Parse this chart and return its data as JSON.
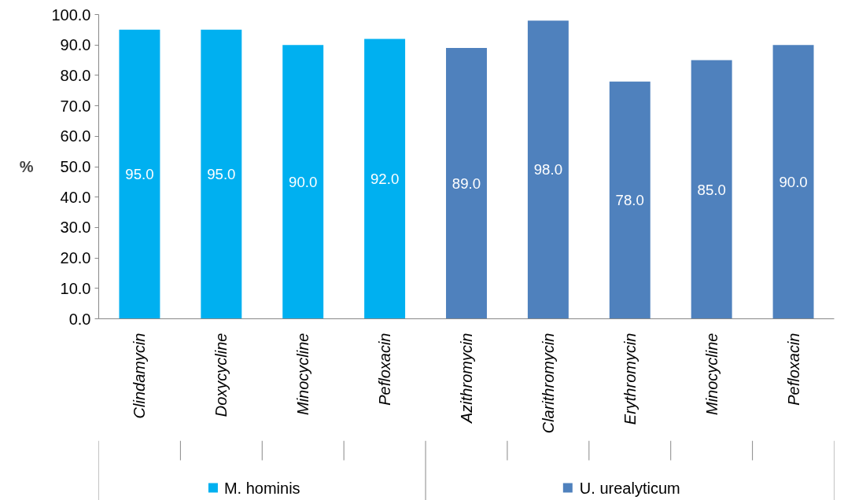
{
  "chart_data": {
    "type": "bar",
    "ylabel": "%",
    "categories": [
      "Clindamycin",
      "Doxycycline",
      "Minocycline",
      "Pefloxacin",
      "Azithromycin",
      "Clarithromycin",
      "Erythromycin",
      "Minocycline",
      "Pefloxacin"
    ],
    "series": [
      {
        "name": "M. hominis",
        "color": "#00b0f0",
        "values": [
          95.0,
          95.0,
          90.0,
          92.0,
          null,
          null,
          null,
          null,
          null
        ],
        "value_labels": [
          "95.0",
          "95.0",
          "90.0",
          "92.0",
          null,
          null,
          null,
          null,
          null
        ]
      },
      {
        "name": "U. urealyticum",
        "color": "#4f81bd",
        "values": [
          null,
          null,
          null,
          null,
          89.0,
          98.0,
          78.0,
          85.0,
          90.0
        ],
        "value_labels": [
          null,
          null,
          null,
          null,
          "89.0",
          "98.0",
          "78.0",
          "85.0",
          "90.0"
        ]
      }
    ],
    "ylim": [
      0,
      100
    ],
    "yticks": [
      {
        "value": 0,
        "label": "0.0"
      },
      {
        "value": 10,
        "label": "10.0"
      },
      {
        "value": 20,
        "label": "20.0"
      },
      {
        "value": 30,
        "label": "30.0"
      },
      {
        "value": 40,
        "label": "40.0"
      },
      {
        "value": 50,
        "label": "50.0"
      },
      {
        "value": 60,
        "label": "60.0"
      },
      {
        "value": 70,
        "label": "70.0"
      },
      {
        "value": 80,
        "label": "80.0"
      },
      {
        "value": 90,
        "label": "90.0"
      },
      {
        "value": 100,
        "label": "100.0"
      }
    ],
    "grid": false,
    "legend": "bottom"
  }
}
